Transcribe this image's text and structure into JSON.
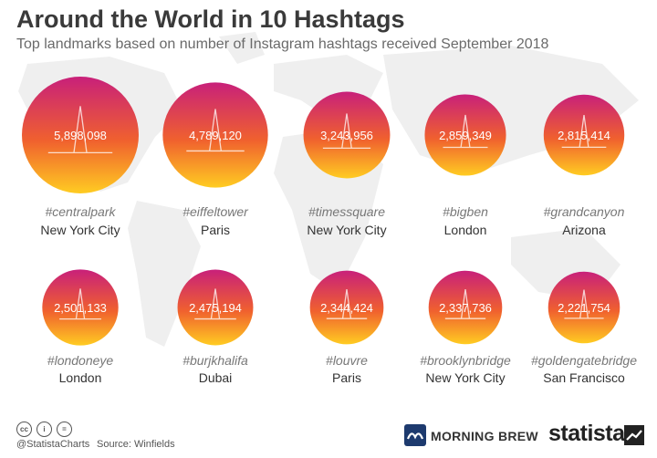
{
  "header": {
    "title": "Around the World in 10 Hashtags",
    "subtitle": "Top landmarks based on number of Instagram hashtags received September 2018"
  },
  "chart_data": {
    "type": "bubble",
    "title": "Around the World in 10 Hashtags",
    "subtitle": "Top landmarks based on number of Instagram hashtags received September 2018",
    "gradient": {
      "top": "#c8207a",
      "bottom": "#ffcc22"
    },
    "items": [
      {
        "hashtag": "#centralpark",
        "location": "New York City",
        "value": 5898098,
        "label": "5,898,098",
        "icon": "trees-icon"
      },
      {
        "hashtag": "#eiffeltower",
        "location": "Paris",
        "value": 4789120,
        "label": "4,789,120",
        "icon": "eiffel-tower-icon"
      },
      {
        "hashtag": "#timessquare",
        "location": "New York City",
        "value": 3243956,
        "label": "3,243,956",
        "icon": "skyscraper-icon"
      },
      {
        "hashtag": "#bigben",
        "location": "London",
        "value": 2859349,
        "label": "2,859,349",
        "icon": "clock-tower-icon"
      },
      {
        "hashtag": "#grandcanyon",
        "location": "Arizona",
        "value": 2815414,
        "label": "2,815,414",
        "icon": "canyon-icon"
      },
      {
        "hashtag": "#londoneye",
        "location": "London",
        "value": 2501133,
        "label": "2,501,133",
        "icon": "ferris-wheel-icon"
      },
      {
        "hashtag": "#burjkhalifa",
        "location": "Dubai",
        "value": 2475194,
        "label": "2,475,194",
        "icon": "tower-icon"
      },
      {
        "hashtag": "#louvre",
        "location": "Paris",
        "value": 2344424,
        "label": "2,344,424",
        "icon": "pyramid-icon"
      },
      {
        "hashtag": "#brooklynbridge",
        "location": "New York City",
        "value": 2337736,
        "label": "2,337,736",
        "icon": "bridge-icon"
      },
      {
        "hashtag": "#goldengatebridge",
        "location": "San Francisco",
        "value": 2221754,
        "label": "2,221,754",
        "icon": "suspension-bridge-icon"
      }
    ]
  },
  "footer": {
    "license_icons": [
      "cc-icon",
      "by-icon",
      "nd-icon"
    ],
    "license_glyphs": [
      "cc",
      "i",
      "="
    ],
    "credit": "@StatistaCharts",
    "source": "Source: Winfields",
    "partner": "MORNING BREW",
    "brand": "statista"
  }
}
